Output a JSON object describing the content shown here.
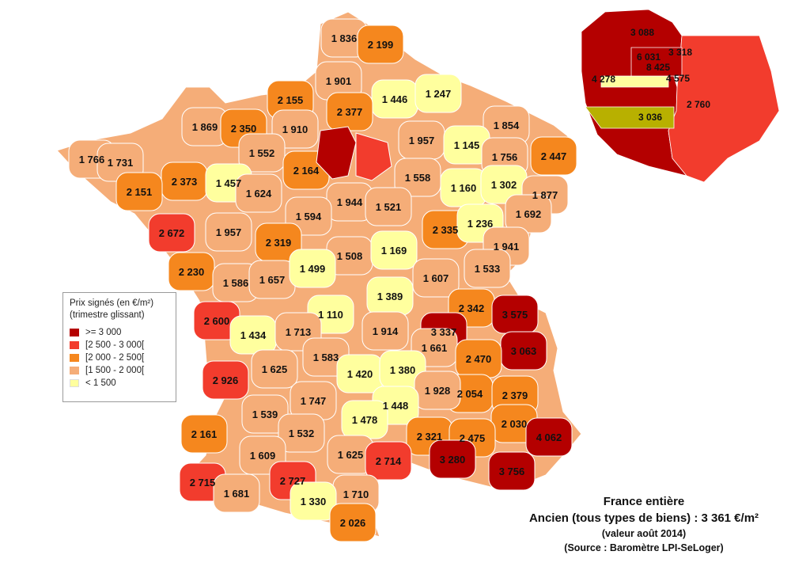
{
  "colors": {
    "c3000": "#b40000",
    "c2500": "#f23c2d",
    "c2000": "#f5871e",
    "c1500": "#f5ad78",
    "c0": "#ffff9e",
    "border": "#ffffff"
  },
  "legend": {
    "title_line1": "Prix signés (en €/m²)",
    "title_line2": "(trimestre glissant)",
    "items": [
      {
        "label": ">= 3 000",
        "color": "#b40000"
      },
      {
        "label": "[2 500 - 3 000[",
        "color": "#f23c2d"
      },
      {
        "label": "[2 000 - 2 500[",
        "color": "#f5871e"
      },
      {
        "label": "[1 500  - 2 000[",
        "color": "#f5ad78"
      },
      {
        "label": "< 1 500",
        "color": "#ffff9e"
      }
    ]
  },
  "caption": {
    "line1": "France entière",
    "line2": "Ancien (tous types de biens) : 3 361 €/m²",
    "line3": "(valeur août 2014)",
    "line4": "(Source : Baromètre LPI-SeLoger)"
  },
  "departments": [
    "1 836",
    "2 199",
    "1 901",
    "1 446",
    "1 247",
    "2 155",
    "2 377",
    "1 869",
    "2 350",
    "1 910",
    "1 854",
    "1 957",
    "1 145",
    "1 766",
    "1 731",
    "1 552",
    "1 756",
    "2 447",
    "2 373",
    "1 457",
    "2 164",
    "1 558",
    "2 151",
    "1 624",
    "1 944",
    "1 521",
    "1 160",
    "1 302",
    "1 877",
    "1 594",
    "2 335",
    "1 692",
    "2 672",
    "1 957",
    "2 319",
    "1 236",
    "1 941",
    "1 508",
    "1 169",
    "2 230",
    "1 586",
    "1 657",
    "1 499",
    "1 533",
    "1 607",
    "1 389",
    "1 110",
    "2 342",
    "3 575",
    "2 600",
    "1 434",
    "1 713",
    "1 914",
    "3 337",
    "3 063",
    "1 661",
    "1 583",
    "2 470",
    "1 625",
    "1 420",
    "1 380",
    "2 926",
    "2 054",
    "2 379",
    "1 928",
    "1 747",
    "1 448",
    "1 539",
    "1 478",
    "2 030",
    "2 161",
    "1 532",
    "2 321",
    "4 062",
    "2 475",
    "1 609",
    "1 625",
    "2 714",
    "3 280",
    "3 756",
    "2 715",
    "2 727",
    "1 681",
    "1 710",
    "1 330",
    "2 026"
  ],
  "inset": [
    "3 088",
    "3 318",
    "6 031",
    "8 425",
    "4 278",
    "4 575",
    "3 036",
    "2 760"
  ]
}
